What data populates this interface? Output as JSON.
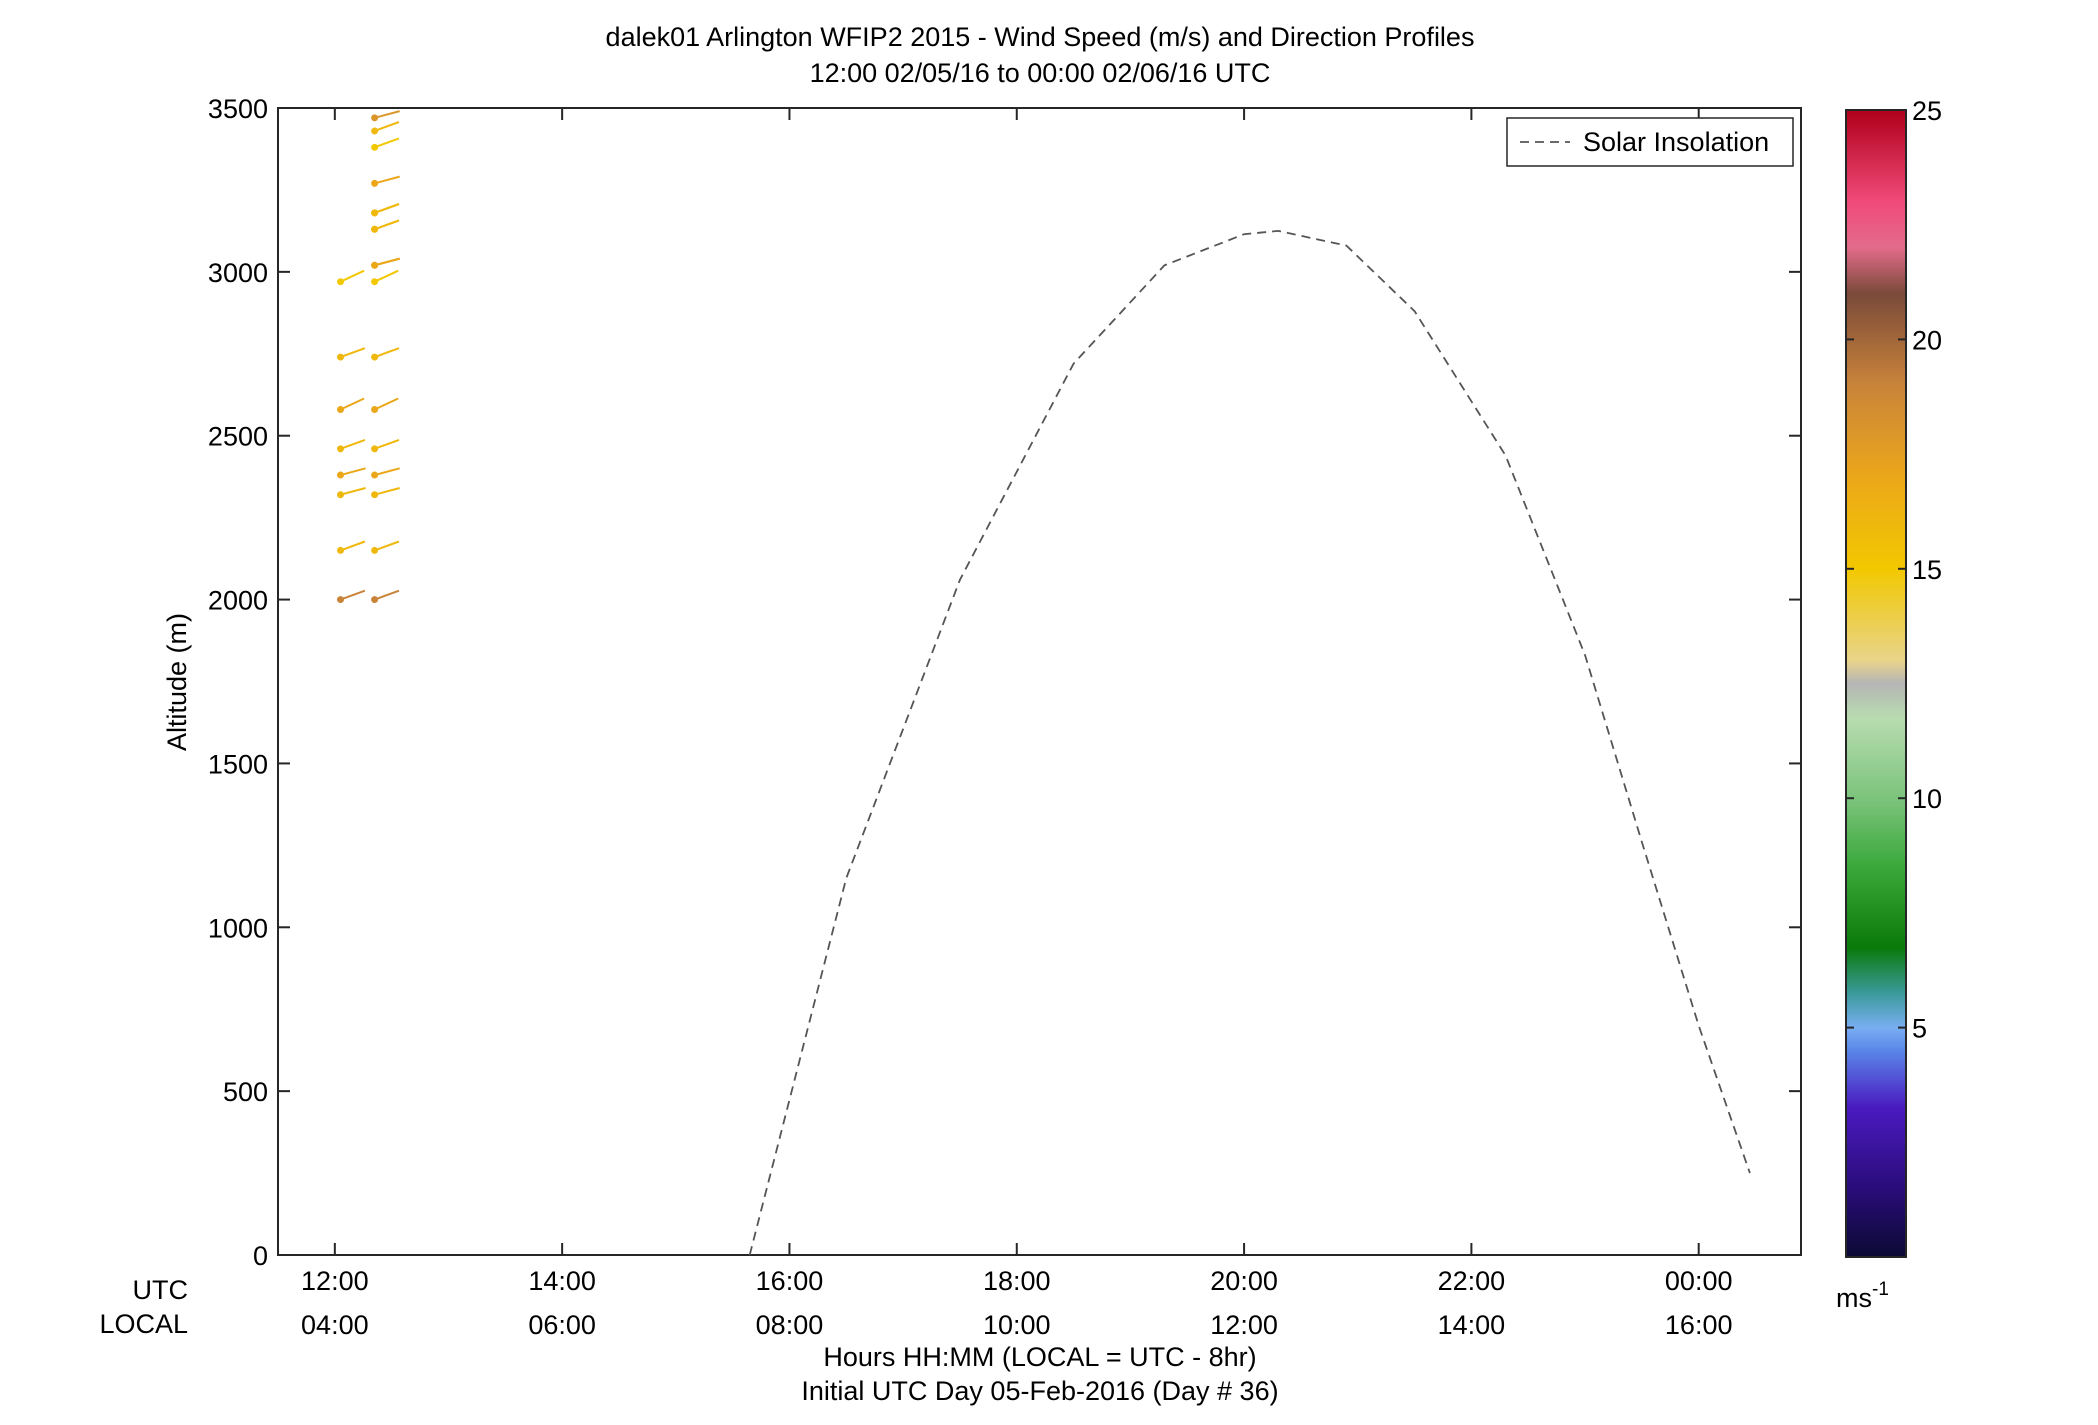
{
  "title_line1": "dalek01 Arlington WFIP2 2015 - Wind Speed (m/s) and Direction Profiles",
  "title_line2": "12:00 02/05/16 to 00:00 02/06/16  UTC",
  "row_label_utc": "UTC",
  "row_label_local": "LOCAL",
  "xlabel_line1": "Hours HH:MM  (LOCAL = UTC - 8hr)",
  "xlabel_line2": "Initial UTC Day 05-Feb-2016 (Day # 36)",
  "ylabel": "Altitude (m)",
  "legend_label": "Solar Insolation",
  "colorbar_unit": "ms",
  "colorbar_unit_exp": "-1",
  "chart_data": {
    "type": "scatter",
    "xlim": [
      11.5,
      24.9
    ],
    "ylim": [
      0,
      3500
    ],
    "yticks": [
      0,
      500,
      1000,
      1500,
      2000,
      2500,
      3000,
      3500
    ],
    "ytick_labels": [
      "0",
      "500",
      "1000",
      "1500",
      "2000",
      "2500",
      "3000",
      "3500"
    ],
    "xticks": [
      12,
      14,
      16,
      18,
      20,
      22,
      24
    ],
    "xtick_labels_utc": [
      "12:00",
      "14:00",
      "16:00",
      "18:00",
      "20:00",
      "22:00",
      "00:00"
    ],
    "xtick_labels_local": [
      "04:00",
      "06:00",
      "08:00",
      "10:00",
      "12:00",
      "14:00",
      "16:00"
    ],
    "colorbar_range": [
      0,
      25
    ],
    "colorbar_ticks": [
      5,
      10,
      15,
      20,
      25
    ],
    "grid": false,
    "legend_position": "top-right",
    "solar_insolation_curve": {
      "x": [
        15.65,
        16.5,
        17.5,
        18.5,
        19.3,
        20.0,
        20.3,
        20.9,
        21.5,
        22.3,
        23.0,
        23.5,
        24.0,
        24.45
      ],
      "y": [
        0,
        1150,
        2060,
        2720,
        3020,
        3115,
        3125,
        3080,
        2880,
        2440,
        1830,
        1260,
        700,
        250
      ]
    },
    "series": [
      {
        "marker": "wind-barb",
        "x": [
          12.05,
          12.05,
          12.05,
          12.05,
          12.05,
          12.05,
          12.05,
          12.05,
          12.35,
          12.35,
          12.35,
          12.35,
          12.35,
          12.35,
          12.35,
          12.35,
          12.35,
          12.35,
          12.35,
          12.35,
          12.35,
          12.35,
          12.35,
          12.35,
          12.35,
          12.35
        ],
        "y": [
          2000,
          2150,
          2320,
          2380,
          2460,
          2580,
          2740,
          2970,
          3020,
          3130,
          3180,
          3270,
          3380,
          3430,
          3470,
          2000,
          2150,
          2320,
          2380,
          2460,
          2580,
          2740,
          2970,
          3020,
          3130,
          3180
        ],
        "speed": [
          19,
          16,
          16,
          17,
          16,
          17,
          16,
          15,
          17,
          16,
          16,
          17,
          15,
          16,
          18,
          19,
          16,
          16,
          17,
          16,
          17,
          16,
          15,
          17,
          16,
          16
        ],
        "direction": [
          250,
          250,
          255,
          255,
          250,
          245,
          250,
          245,
          255,
          250,
          250,
          255,
          250,
          250,
          255,
          250,
          250,
          255,
          255,
          250,
          245,
          250,
          245,
          255,
          250,
          250
        ]
      }
    ]
  }
}
